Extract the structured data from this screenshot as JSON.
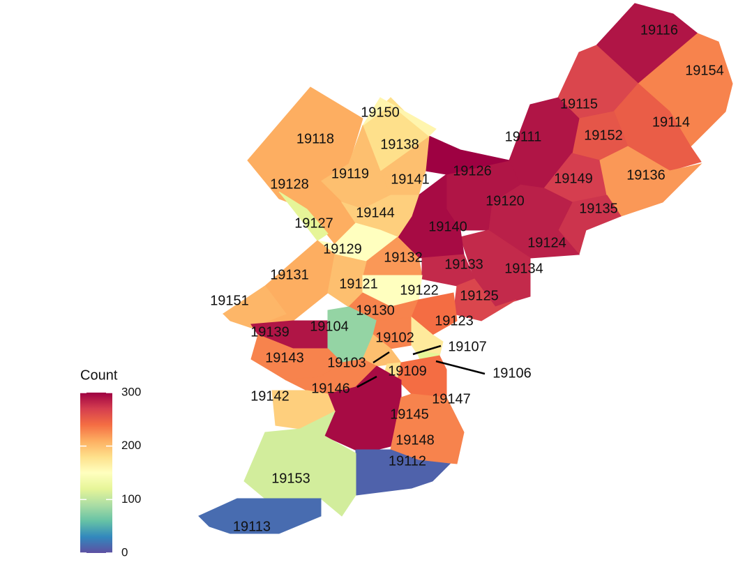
{
  "chart_data": {
    "type": "choropleth",
    "legend_title": "Count",
    "categories": [
      "19116",
      "19154",
      "19115",
      "19114",
      "19152",
      "19111",
      "19149",
      "19136",
      "19135",
      "19124",
      "19120",
      "19126",
      "19134",
      "19140",
      "19141",
      "19138",
      "19150",
      "19118",
      "19119",
      "19128",
      "19127",
      "19144",
      "19129",
      "19132",
      "19133",
      "19125",
      "19131",
      "19151",
      "19121",
      "19122",
      "19130",
      "19123",
      "19139",
      "19104",
      "19102",
      "19107",
      "19103",
      "19106",
      "19143",
      "19146",
      "19109",
      "19147",
      "19145",
      "19148",
      "19112",
      "19142",
      "19153",
      "19113"
    ],
    "values": [
      290,
      230,
      265,
      250,
      255,
      290,
      270,
      220,
      275,
      285,
      290,
      300,
      280,
      295,
      200,
      180,
      160,
      210,
      200,
      210,
      120,
      190,
      150,
      220,
      280,
      265,
      210,
      205,
      200,
      150,
      230,
      240,
      290,
      80,
      230,
      170,
      200,
      120,
      230,
      230,
      180,
      240,
      295,
      230,
      10,
      190,
      110,
      15
    ],
    "colorlim": [
      0,
      300
    ],
    "colorticks": [
      0,
      100,
      200,
      300
    ],
    "colorscale": [
      "#5E4FA2",
      "#3288BD",
      "#66C2A5",
      "#ABDDA4",
      "#E6F598",
      "#FFFFBF",
      "#FEE08B",
      "#FDAE61",
      "#F46D43",
      "#D53E4F",
      "#9E0142"
    ]
  }
}
